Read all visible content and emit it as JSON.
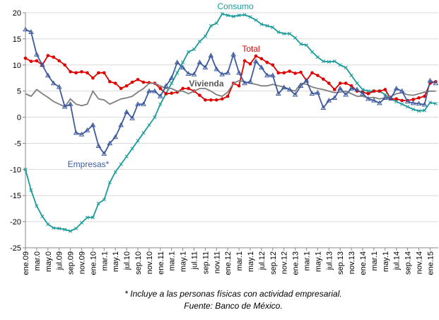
{
  "chart_data": {
    "type": "line",
    "categories": [
      "ene.09",
      null,
      "mar.0",
      null,
      "may.0",
      null,
      "jul.09",
      null,
      "sep.09",
      null,
      "nov.09",
      null,
      "ene.10",
      null,
      "mar.1",
      null,
      "may.1",
      null,
      "jul.10",
      null,
      "sep.10",
      null,
      "nov.10",
      null,
      "ene.11",
      null,
      "mar.1",
      null,
      "may.1",
      null,
      "jul.11",
      null,
      "sep.11",
      null,
      "nov.11",
      null,
      "ene.12",
      null,
      "mar.1",
      null,
      "may.1",
      null,
      "jul.12",
      null,
      "sep.12",
      null,
      "nov.12",
      null,
      "ene.13",
      null,
      "mar.1",
      null,
      "may.1",
      null,
      "jul.13",
      null,
      "sep.13",
      null,
      "nov.13",
      null,
      "ene.14",
      null,
      "mar.1",
      null,
      "may.1",
      null,
      "jul.14",
      null,
      "sep.14",
      null,
      "nov.14",
      null,
      "ene.15",
      null
    ],
    "series": [
      {
        "name": "Consumo",
        "color": "#1a9a9a",
        "marker": "x",
        "values": [
          -10,
          -14,
          -17,
          -19,
          -20.5,
          -21.2,
          -21.3,
          -21.5,
          -21.8,
          -21.3,
          -20.2,
          -19.2,
          -19.2,
          -16.5,
          -15.8,
          -12.5,
          -10.5,
          -9,
          -7.5,
          -6,
          -4.5,
          -3,
          -1.5,
          0,
          2.5,
          4.5,
          6.5,
          8.5,
          10.5,
          12.5,
          13,
          14.5,
          15.5,
          17.5,
          18,
          19.8,
          19.5,
          19.3,
          19.5,
          19.6,
          19.2,
          18.6,
          17.8,
          17.5,
          17.2,
          16.3,
          16,
          16,
          15.2,
          14,
          13.8,
          12.5,
          11.5,
          10.7,
          10.6,
          10.7,
          10,
          9.5,
          8,
          6.5,
          5.3,
          5,
          5,
          5,
          4.3,
          3.5,
          3,
          2.5,
          2,
          1.5,
          1.2,
          1.3,
          2.8,
          2.6
        ]
      },
      {
        "name": "Total",
        "color": "#e00000",
        "marker": "circle",
        "values": [
          11.3,
          10.7,
          10.8,
          10,
          11.8,
          11.5,
          10.8,
          10,
          8.7,
          8.5,
          8.7,
          8.5,
          7.5,
          8.5,
          8.5,
          6.8,
          6.5,
          5.5,
          6,
          6.7,
          7.2,
          6.7,
          6.6,
          6.5,
          5.5,
          4.5,
          4.6,
          4.8,
          5.5,
          5.5,
          5,
          4.2,
          3.3,
          3.3,
          3.3,
          3.5,
          4,
          6.5,
          6,
          10.8,
          10.2,
          11.7,
          11.2,
          10.5,
          10,
          8.5,
          8.5,
          8.8,
          8.4,
          8.6,
          7,
          8.5,
          8,
          7.3,
          6.5,
          5.3,
          6.5,
          6.5,
          6,
          5,
          4.8,
          4.5,
          5,
          5,
          5.3,
          3.5,
          3.5,
          3.2,
          3.2,
          3.4,
          3.7,
          4,
          6.5,
          6.8
        ]
      },
      {
        "name": "Vivienda",
        "color": "#7f7f7f",
        "marker": "none",
        "values": [
          4.5,
          4,
          5.3,
          4.5,
          3.8,
          3,
          2.5,
          2,
          3.5,
          2.5,
          2.2,
          2.5,
          5,
          3.5,
          3.3,
          2.5,
          3,
          3.5,
          3.7,
          4,
          4.8,
          5.5,
          6.5,
          6.5,
          6,
          5.5,
          5.5,
          5,
          5,
          4.5,
          5,
          5.5,
          5.5,
          5,
          4.3,
          4,
          4.8,
          6.5,
          7,
          6.8,
          6.5,
          6.3,
          6,
          6,
          6.3,
          6,
          5.8,
          5.3,
          5,
          6.5,
          6.3,
          5.8,
          5.5,
          5.3,
          5,
          4.7,
          4.8,
          5,
          4.5,
          4,
          4,
          3.7,
          3.8,
          3.5,
          3.7,
          4,
          4.5,
          4.7,
          4.3,
          4.2,
          4.5,
          4.8,
          5,
          5
        ]
      },
      {
        "name": "Empresas*",
        "color": "#3d5a9e",
        "marker": "triangle",
        "values": [
          16.8,
          16.3,
          12,
          10,
          8,
          6.5,
          5.8,
          2,
          2.5,
          -3,
          -3.3,
          -2.5,
          -1.5,
          -5.5,
          -7,
          -5,
          -3.8,
          -1.5,
          1,
          -0.2,
          2.5,
          2.5,
          5,
          5,
          4,
          6,
          7.5,
          10.5,
          9.5,
          8.3,
          8.2,
          10.5,
          9.5,
          11.8,
          9.2,
          8.2,
          8.5,
          12,
          8.5,
          6.5,
          6.8,
          10.7,
          9.5,
          8,
          8,
          4.5,
          5.7,
          5.3,
          4.3,
          6,
          7,
          4.5,
          4.7,
          1.8,
          3.2,
          3.7,
          5.5,
          4.3,
          5.5,
          5.3,
          4.5,
          3.5,
          3.2,
          2.7,
          3.7,
          3.6,
          5.5,
          5,
          3,
          2.7,
          2.6,
          2.4,
          7,
          6.5
        ]
      }
    ],
    "ylim": [
      -25,
      20
    ],
    "yticks": [
      -25,
      -20,
      -15,
      -10,
      -5,
      0,
      5,
      10,
      15,
      20
    ],
    "grid": true,
    "footnotes": [
      "* Incluye a las personas físicas con actividad empresarial.",
      "Fuente: Banco de México."
    ]
  }
}
